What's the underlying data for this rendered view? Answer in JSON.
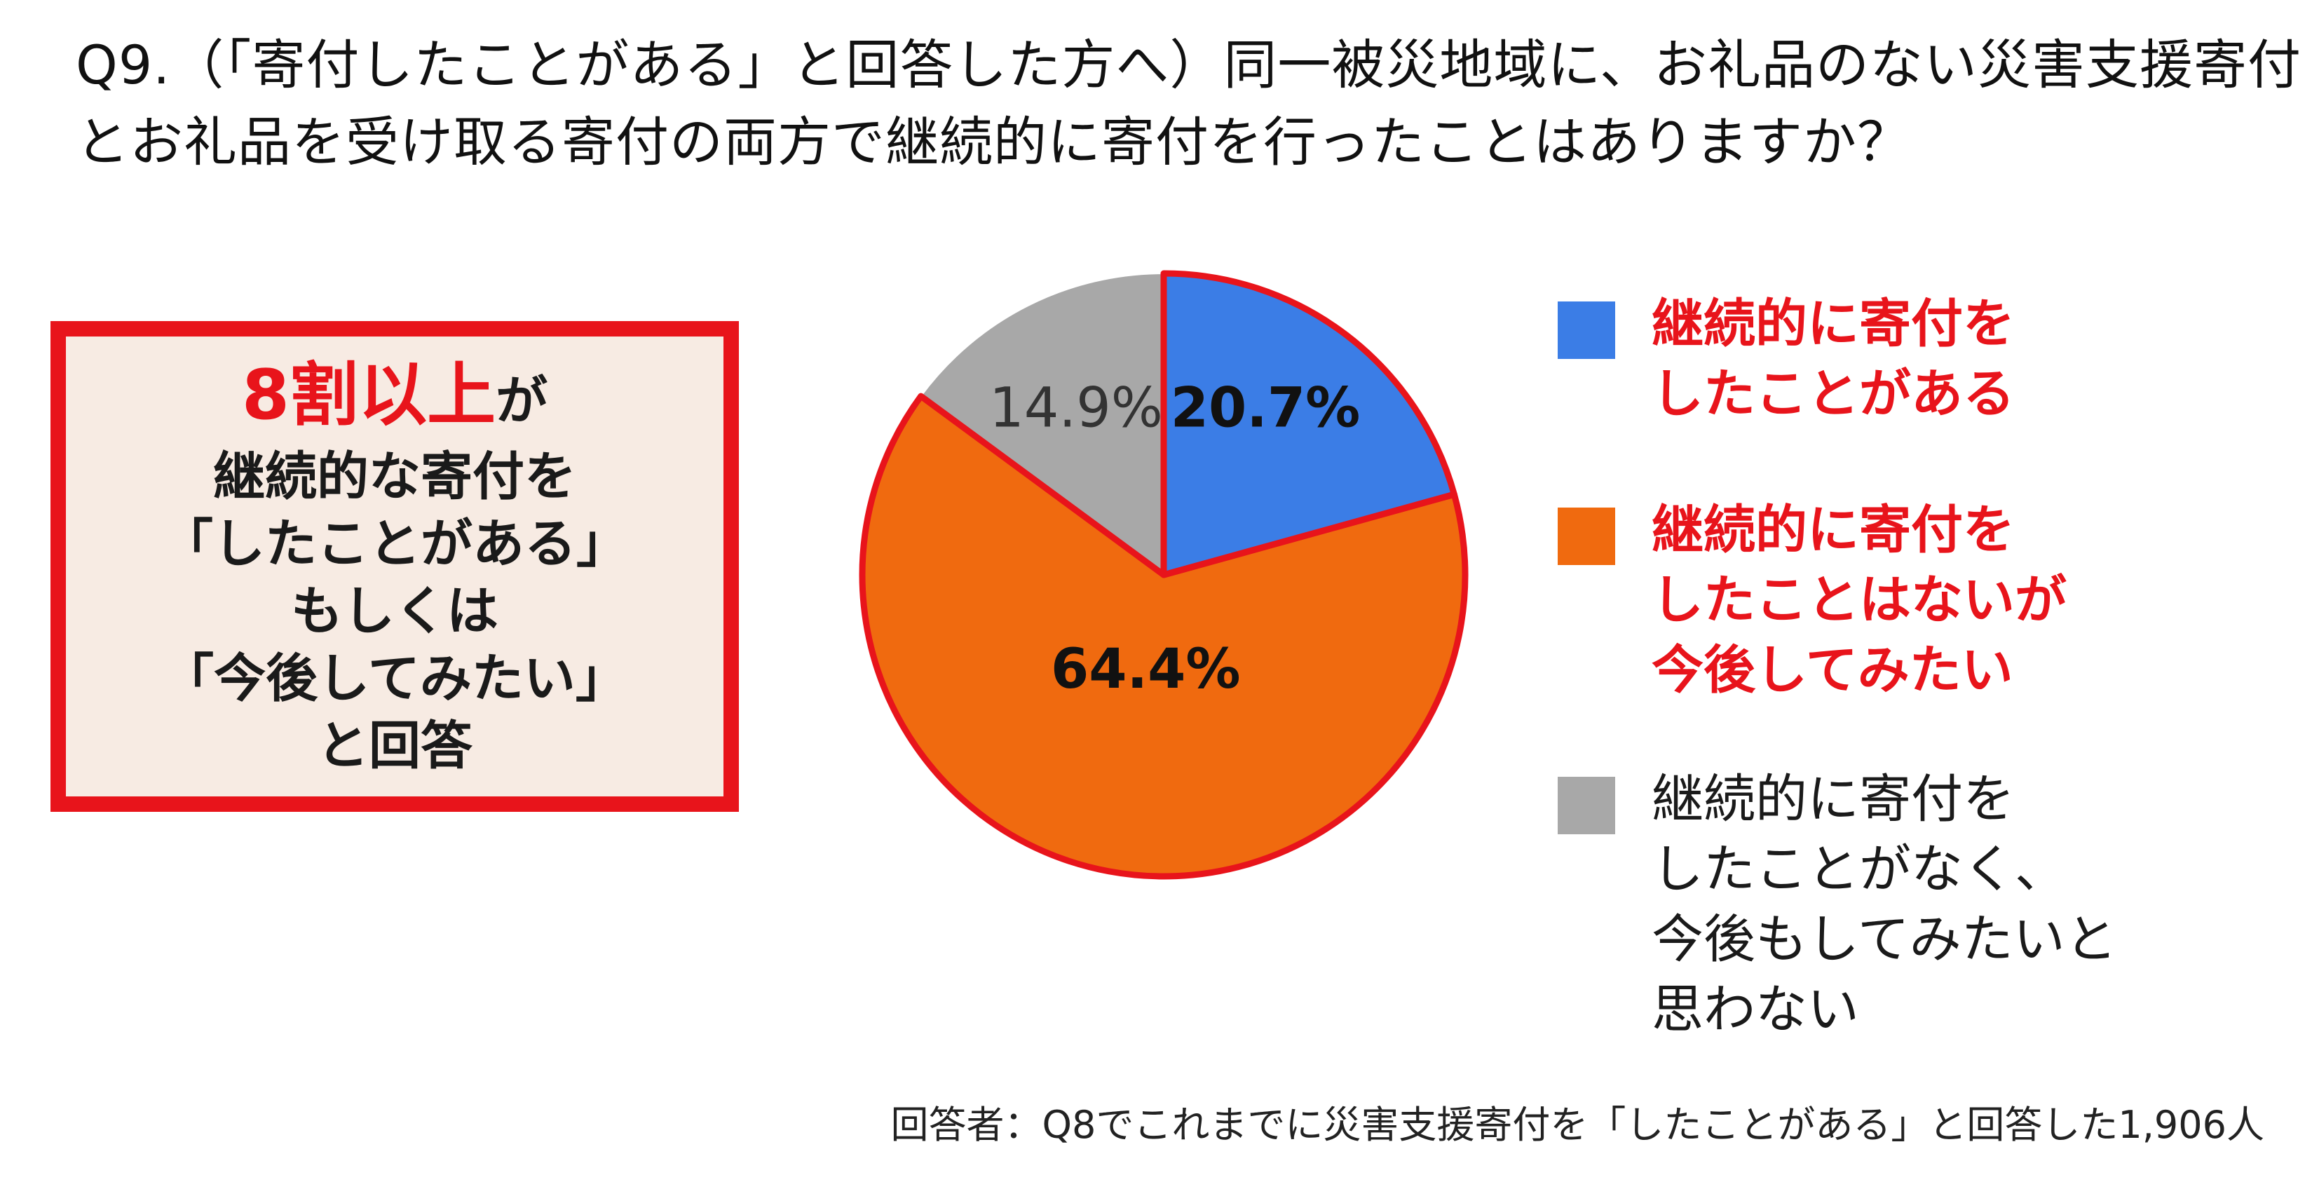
{
  "question": {
    "line1": "Q9.（「寄付したことがある」と回答した方へ）同一被災地域に、お礼品のない災害支援寄付",
    "line2": "とお礼品を受け取る寄付の両方で継続的に寄付を行ったことはありますか？"
  },
  "callout": {
    "highlight": "8割以上",
    "suffix": "が",
    "lines": [
      "継続的な寄付を",
      "「したことがある」",
      "もしくは",
      "「今後してみたい」",
      "と回答"
    ],
    "accent_color": "#e8141b",
    "background_color": "#f7ebe3"
  },
  "legend": [
    {
      "lines": [
        "継続的に寄付を",
        "したことがある"
      ],
      "swatch_color": "#3b7de6",
      "text_color": "#e8141b"
    },
    {
      "lines": [
        "継続的に寄付を",
        "したことはないが",
        "今後してみたい"
      ],
      "swatch_color": "#f06a0f",
      "text_color": "#e8141b"
    },
    {
      "lines": [
        "継続的に寄付を",
        "したことがなく、",
        "今後もしてみたいと",
        "思わない"
      ],
      "swatch_color": "#a8a8a8",
      "text_color": "#1a1a1a"
    }
  ],
  "footnote": "回答者：Q8でこれまでに災害支援寄付を「したことがある」と回答した1,906人",
  "chart_data": {
    "type": "pie",
    "title": "",
    "start_angle_deg": 0,
    "direction": "clockwise",
    "slices": [
      {
        "label": "継続的に寄付をしたことがある",
        "value": 20.7,
        "display": "20.7%",
        "color": "#3b7de6",
        "label_bold": true,
        "outlined": true
      },
      {
        "label": "継続的に寄付をしたことはないが今後してみたい",
        "value": 64.4,
        "display": "64.4%",
        "color": "#f06a0f",
        "label_bold": true,
        "outlined": true
      },
      {
        "label": "継続的に寄付をしたことがなく、今後もしてみたいと思わない",
        "value": 14.9,
        "display": "14.9%",
        "color": "#a8a8a8",
        "label_bold": false,
        "outlined": false
      }
    ],
    "outline_color": "#e8141b",
    "legend_position": "right"
  }
}
